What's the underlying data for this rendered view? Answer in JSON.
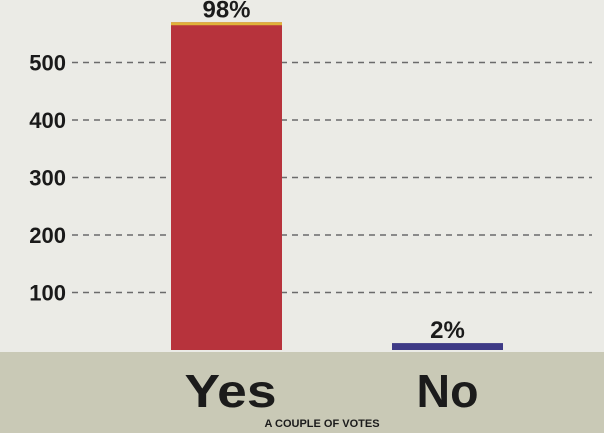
{
  "chart_data": {
    "type": "bar",
    "categories": [
      "Yes",
      "No"
    ],
    "values": [
      570,
      12
    ],
    "data_labels": [
      "98%",
      "2%"
    ],
    "yticks": [
      100,
      200,
      300,
      400,
      500
    ],
    "ylim": [
      0,
      620
    ],
    "caption": "A COUPLE OF VOTES",
    "grid": true,
    "colors": {
      "yes_bar": "#b7333c",
      "yes_bar_top": "#e0b23a",
      "no_bar": "#3e3a86",
      "plot_bg": "#ebebe6",
      "footer_bg": "#c9c9b6",
      "grid": "#6b6b6b"
    }
  }
}
